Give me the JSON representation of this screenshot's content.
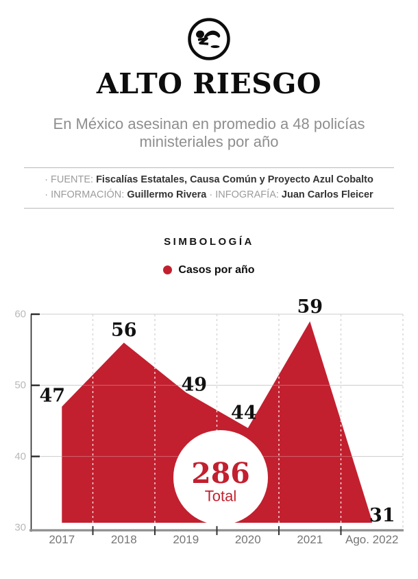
{
  "header": {
    "logo_name": "fallen-person-logo",
    "title": "ALTO RIESGO",
    "subtitle": "En México asesinan en promedio a 48 policías ministeriales por año"
  },
  "credits": {
    "source_label": "· FUENTE:",
    "source_value": "Fiscalías Estatales, Causa Común y Proyecto Azul Cobalto",
    "info_label": "· INFORMACIÓN:",
    "info_value": "Guillermo Rivera",
    "infographic_label": "· INFOGRAFÍA:",
    "infographic_value": "Juan Carlos Fleicer"
  },
  "legend": {
    "section_title": "SIMBOLOGÍA",
    "item_label": "Casos por año",
    "dot_color": "#c2202f"
  },
  "chart_data": {
    "type": "area",
    "title": "",
    "series_name": "Casos por año",
    "categories": [
      "2017",
      "2018",
      "2019",
      "2020",
      "2021",
      "Ago. 2022"
    ],
    "values": [
      47,
      56,
      49,
      44,
      59,
      31
    ],
    "total_value": "286",
    "total_label": "Total",
    "ylim": [
      30,
      60
    ],
    "yticks": [
      30,
      40,
      50,
      60
    ],
    "xlabel": "",
    "ylabel": "",
    "grid": true,
    "legend_position": "above-chart",
    "area_color": "#c2202f",
    "label_color": "#111111",
    "axis_color": "#8f8f8f",
    "gridline_color": "#cccccc",
    "ytick_label_color": "#b8b8b8",
    "xtick_label_color": "#757575"
  }
}
